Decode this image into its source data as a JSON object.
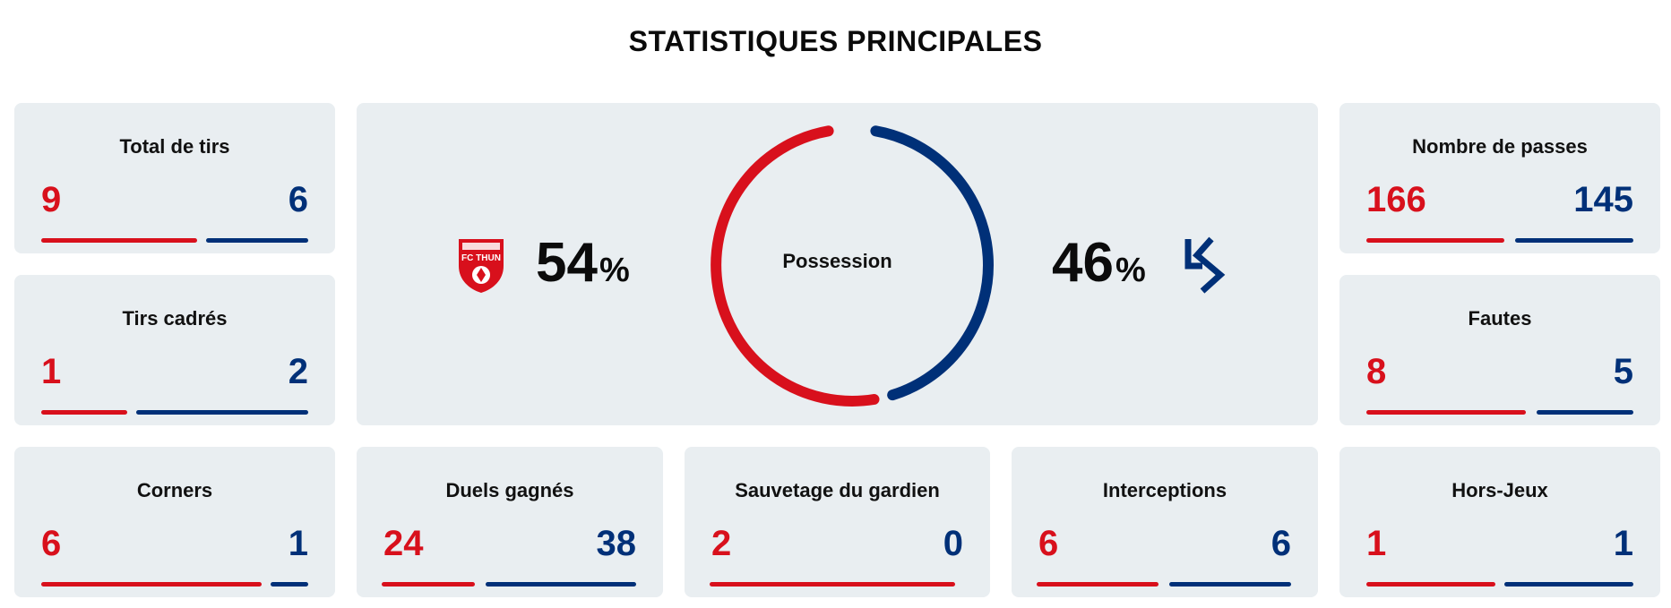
{
  "page": {
    "title": "STATISTIQUES PRINCIPALES"
  },
  "colors": {
    "home": "#d8101c",
    "away": "#003078",
    "card_bg": "#e9eef1"
  },
  "possession": {
    "label": "Possession",
    "home": 54,
    "away": 46,
    "unit": "%",
    "home_logo_text": "FC THUN"
  },
  "stats": [
    {
      "id": "tirs",
      "label": "Total de tirs",
      "home": "9",
      "away": "6"
    },
    {
      "id": "cadres",
      "label": "Tirs cadrés",
      "home": "1",
      "away": "2"
    },
    {
      "id": "corners",
      "label": "Corners",
      "home": "6",
      "away": "1"
    },
    {
      "id": "duels",
      "label": "Duels gagnés",
      "home": "24",
      "away": "38"
    },
    {
      "id": "sauvetage",
      "label": "Sauvetage du gardien",
      "home": "2",
      "away": "0"
    },
    {
      "id": "interceptions",
      "label": "Interceptions",
      "home": "6",
      "away": "6"
    },
    {
      "id": "horsjeux",
      "label": "Hors-Jeux",
      "home": "1",
      "away": "1"
    },
    {
      "id": "passes",
      "label": "Nombre de passes",
      "home": "166",
      "away": "145"
    },
    {
      "id": "fautes",
      "label": "Fautes",
      "home": "8",
      "away": "5"
    }
  ]
}
